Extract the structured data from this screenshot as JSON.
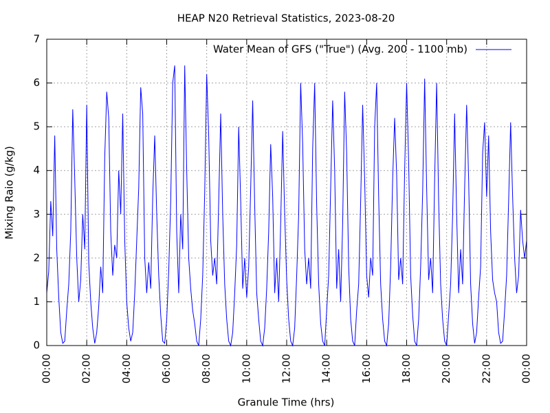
{
  "chart_data": {
    "type": "line",
    "title": "HEAP N20 Retrieval Statistics, 2023-08-20",
    "x_label": "Granule Time (hrs)",
    "y_label": "Mixing Raio (g/kg)",
    "xlim": [
      0,
      24
    ],
    "ylim": [
      0,
      7
    ],
    "xticks": [
      {
        "value": 0,
        "label": "00:00"
      },
      {
        "value": 2,
        "label": "02:00"
      },
      {
        "value": 4,
        "label": "04:00"
      },
      {
        "value": 6,
        "label": "06:00"
      },
      {
        "value": 8,
        "label": "08:00"
      },
      {
        "value": 10,
        "label": "10:00"
      },
      {
        "value": 12,
        "label": "12:00"
      },
      {
        "value": 14,
        "label": "14:00"
      },
      {
        "value": 16,
        "label": "16:00"
      },
      {
        "value": 18,
        "label": "18:00"
      },
      {
        "value": 20,
        "label": "20:00"
      },
      {
        "value": 22,
        "label": "22:00"
      },
      {
        "value": 24,
        "label": "00:00"
      }
    ],
    "yticks": [
      0,
      1,
      2,
      3,
      4,
      5,
      6,
      7
    ],
    "grid": true,
    "legend": "top-right",
    "x": [
      0,
      0.1,
      0.2,
      0.3,
      0.4,
      0.5,
      0.6,
      0.7,
      0.8,
      0.9,
      1,
      1.1,
      1.2,
      1.3,
      1.4,
      1.5,
      1.6,
      1.7,
      1.8,
      1.9,
      2,
      2.1,
      2.2,
      2.3,
      2.4,
      2.5,
      2.6,
      2.7,
      2.8,
      2.9,
      3,
      3.1,
      3.2,
      3.3,
      3.4,
      3.5,
      3.6,
      3.7,
      3.8,
      3.9,
      4,
      4.1,
      4.2,
      4.3,
      4.4,
      4.5,
      4.6,
      4.7,
      4.8,
      4.9,
      5,
      5.1,
      5.2,
      5.3,
      5.4,
      5.5,
      5.6,
      5.7,
      5.8,
      5.9,
      6,
      6.1,
      6.2,
      6.3,
      6.4,
      6.5,
      6.6,
      6.7,
      6.8,
      6.9,
      7,
      7.1,
      7.2,
      7.3,
      7.4,
      7.5,
      7.6,
      7.7,
      7.8,
      7.9,
      8,
      8.1,
      8.2,
      8.3,
      8.4,
      8.5,
      8.6,
      8.7,
      8.8,
      8.9,
      9,
      9.1,
      9.2,
      9.3,
      9.4,
      9.5,
      9.6,
      9.7,
      9.8,
      9.9,
      10,
      10.1,
      10.2,
      10.3,
      10.4,
      10.5,
      10.6,
      10.7,
      10.8,
      10.9,
      11,
      11.1,
      11.2,
      11.3,
      11.4,
      11.5,
      11.6,
      11.7,
      11.8,
      11.9,
      12,
      12.1,
      12.2,
      12.3,
      12.4,
      12.5,
      12.6,
      12.7,
      12.8,
      12.9,
      13,
      13.1,
      13.2,
      13.3,
      13.4,
      13.5,
      13.6,
      13.7,
      13.8,
      13.9,
      14,
      14.1,
      14.2,
      14.3,
      14.4,
      14.5,
      14.6,
      14.7,
      14.8,
      14.9,
      15,
      15.1,
      15.2,
      15.3,
      15.4,
      15.5,
      15.6,
      15.7,
      15.8,
      15.9,
      16,
      16.1,
      16.2,
      16.3,
      16.4,
      16.5,
      16.6,
      16.7,
      16.8,
      16.9,
      17,
      17.1,
      17.2,
      17.3,
      17.4,
      17.5,
      17.6,
      17.7,
      17.8,
      17.9,
      18,
      18.1,
      18.2,
      18.3,
      18.4,
      18.5,
      18.6,
      18.7,
      18.8,
      18.9,
      19,
      19.1,
      19.2,
      19.3,
      19.4,
      19.5,
      19.6,
      19.7,
      19.8,
      19.9,
      20,
      20.1,
      20.2,
      20.3,
      20.4,
      20.5,
      20.6,
      20.7,
      20.8,
      20.9,
      21,
      21.1,
      21.2,
      21.3,
      21.4,
      21.5,
      21.6,
      21.7,
      21.8,
      21.9,
      22,
      22.1,
      22.2,
      22.3,
      22.4,
      22.5,
      22.6,
      22.7,
      22.8,
      22.9,
      23,
      23.1,
      23.2,
      23.3,
      23.4,
      23.5,
      23.6,
      23.7,
      23.8,
      23.9,
      24
    ],
    "series": [
      {
        "name": "Water Mean of GFS (\"True\") (Avg. 200 - 1100 mb)",
        "color": "#0000ff",
        "values": [
          1.2,
          1.7,
          3.3,
          2.5,
          4.8,
          2.2,
          1.1,
          0.3,
          0.05,
          0.1,
          0.8,
          1.4,
          2.6,
          5.4,
          3.8,
          2.0,
          1.0,
          1.5,
          3.0,
          2.2,
          5.5,
          1.9,
          1.0,
          0.4,
          0.05,
          0.3,
          0.9,
          1.8,
          1.2,
          4.3,
          5.8,
          5.2,
          2.6,
          1.6,
          2.3,
          2.0,
          4.0,
          3.0,
          5.3,
          2.4,
          1.0,
          0.4,
          0.1,
          0.3,
          1.2,
          2.4,
          3.6,
          5.9,
          5.3,
          2.0,
          1.2,
          1.9,
          1.3,
          3.4,
          4.8,
          3.0,
          1.6,
          0.7,
          0.1,
          0.05,
          0.6,
          1.7,
          3.3,
          6.0,
          6.4,
          2.6,
          1.2,
          3.0,
          2.2,
          6.4,
          4.0,
          2.0,
          1.3,
          0.8,
          0.5,
          0.1,
          0.0,
          0.6,
          1.6,
          3.5,
          6.2,
          4.8,
          2.4,
          1.6,
          2.0,
          1.4,
          3.3,
          5.3,
          3.0,
          1.4,
          0.6,
          0.1,
          0.0,
          0.3,
          1.2,
          2.3,
          5.0,
          3.3,
          1.3,
          2.0,
          1.1,
          1.8,
          3.6,
          5.6,
          3.2,
          1.2,
          0.6,
          0.1,
          0.0,
          0.4,
          1.3,
          2.6,
          4.6,
          3.4,
          1.2,
          2.0,
          1.0,
          2.8,
          4.9,
          3.0,
          1.5,
          0.6,
          0.1,
          0.0,
          0.4,
          1.6,
          3.0,
          6.0,
          4.6,
          2.2,
          1.4,
          2.0,
          1.3,
          4.5,
          6.0,
          3.2,
          1.4,
          0.5,
          0.1,
          0.0,
          0.8,
          1.6,
          3.6,
          5.6,
          4.0,
          1.3,
          2.2,
          1.0,
          2.8,
          5.8,
          4.4,
          1.8,
          0.6,
          0.1,
          0.0,
          0.8,
          1.4,
          3.3,
          5.5,
          3.8,
          1.6,
          1.1,
          2.0,
          1.6,
          5.0,
          6.0,
          3.4,
          1.4,
          0.6,
          0.1,
          0.0,
          0.5,
          1.8,
          3.8,
          5.2,
          3.9,
          1.5,
          2.0,
          1.4,
          4.0,
          6.0,
          4.2,
          1.6,
          0.7,
          0.1,
          0.0,
          0.6,
          1.8,
          3.5,
          6.1,
          3.6,
          1.5,
          2.0,
          1.2,
          3.8,
          6.0,
          3.3,
          1.4,
          0.6,
          0.1,
          0.0,
          0.7,
          1.4,
          3.0,
          5.3,
          3.0,
          1.2,
          2.2,
          1.4,
          3.6,
          5.5,
          3.8,
          1.4,
          0.5,
          0.05,
          0.3,
          1.1,
          1.8,
          4.4,
          5.1,
          3.4,
          4.8,
          2.6,
          1.5,
          1.2,
          1.0,
          0.3,
          0.05,
          0.1,
          0.8,
          1.6,
          3.3,
          5.1,
          3.4,
          2.0,
          1.2,
          1.6,
          3.1,
          2.4,
          2.0,
          2.4
        ]
      }
    ]
  }
}
